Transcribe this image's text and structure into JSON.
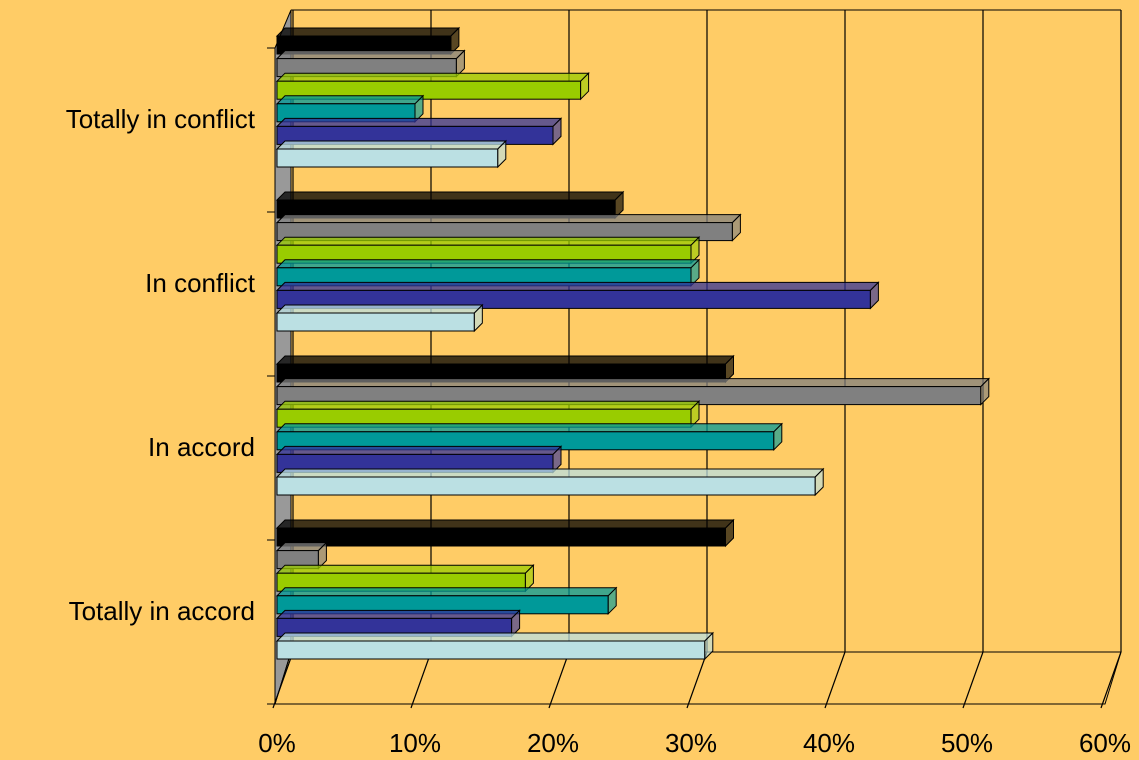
{
  "chart_data": {
    "type": "bar",
    "orientation": "horizontal",
    "style": "3d-clustered",
    "categories": [
      "Totally in conflict",
      "In conflict",
      "In accord",
      "Totally in accord"
    ],
    "x_ticks": [
      "0%",
      "10%",
      "20%",
      "30%",
      "40%",
      "50%",
      "60%"
    ],
    "xlim": [
      0,
      60
    ],
    "grid": true,
    "legend": "none",
    "background": "#FFCC66",
    "series": [
      {
        "color": "#000000",
        "values": [
          12.6,
          24.5,
          32.5,
          32.5
        ]
      },
      {
        "color": "#808080",
        "values": [
          13.0,
          33.0,
          51.0,
          3.0
        ]
      },
      {
        "color": "#99CC00",
        "values": [
          22.0,
          30.0,
          30.0,
          18.0
        ]
      },
      {
        "color": "#009999",
        "values": [
          10.0,
          30.0,
          36.0,
          24.0
        ]
      },
      {
        "color": "#333399",
        "values": [
          20.0,
          43.0,
          20.0,
          17.0
        ]
      },
      {
        "color": "#BBE0E3",
        "values": [
          16.0,
          14.3,
          39.0,
          31.0
        ]
      }
    ]
  }
}
